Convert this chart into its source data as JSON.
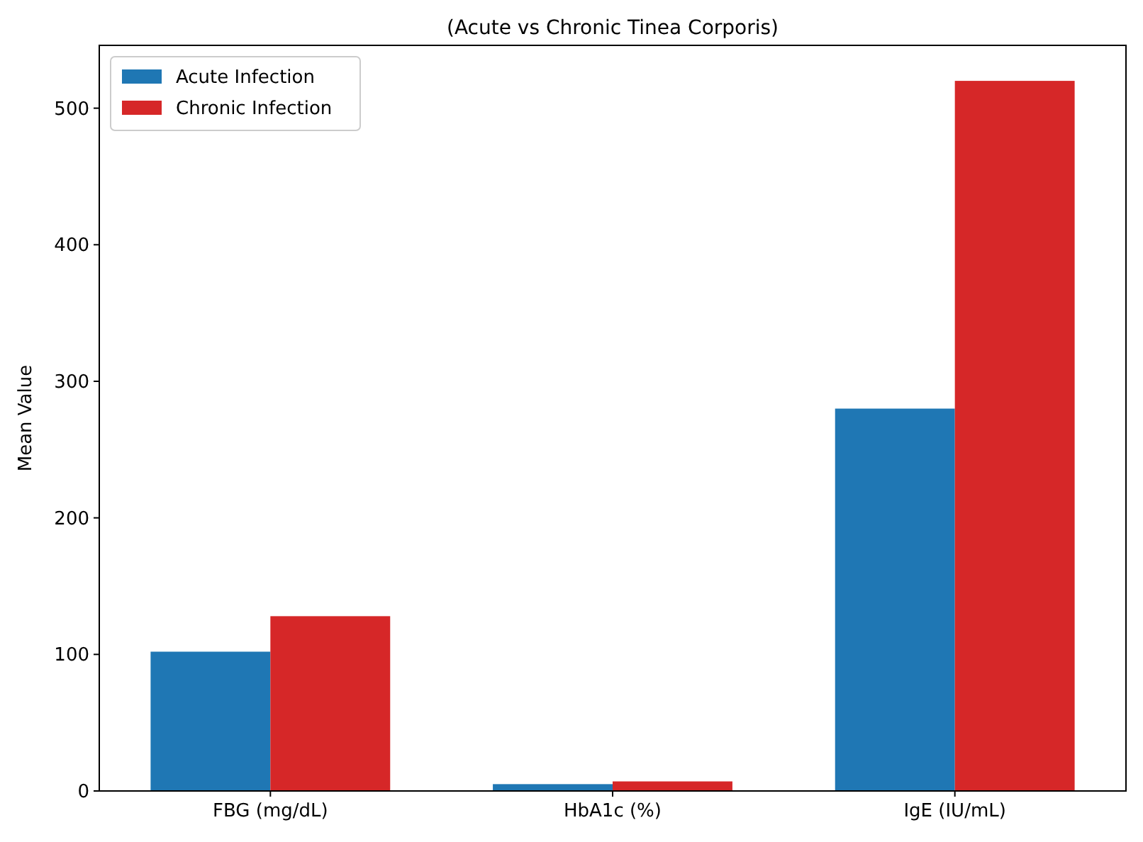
{
  "chart_data": {
    "type": "bar",
    "title": "(Acute vs Chronic Tinea Corporis)",
    "ylabel": "Mean Value",
    "categories": [
      "FBG (mg/dL)",
      "HbA1c (%)",
      "IgE (IU/mL)"
    ],
    "series": [
      {
        "name": "Acute Infection",
        "color": "#1f77b4",
        "values": [
          102,
          5,
          280
        ]
      },
      {
        "name": "Chronic Infection",
        "color": "#d62728",
        "values": [
          128,
          7,
          520
        ]
      }
    ],
    "ylim": [
      0,
      546
    ],
    "yticks": [
      0,
      100,
      200,
      300,
      400,
      500
    ],
    "legend": "top left"
  }
}
